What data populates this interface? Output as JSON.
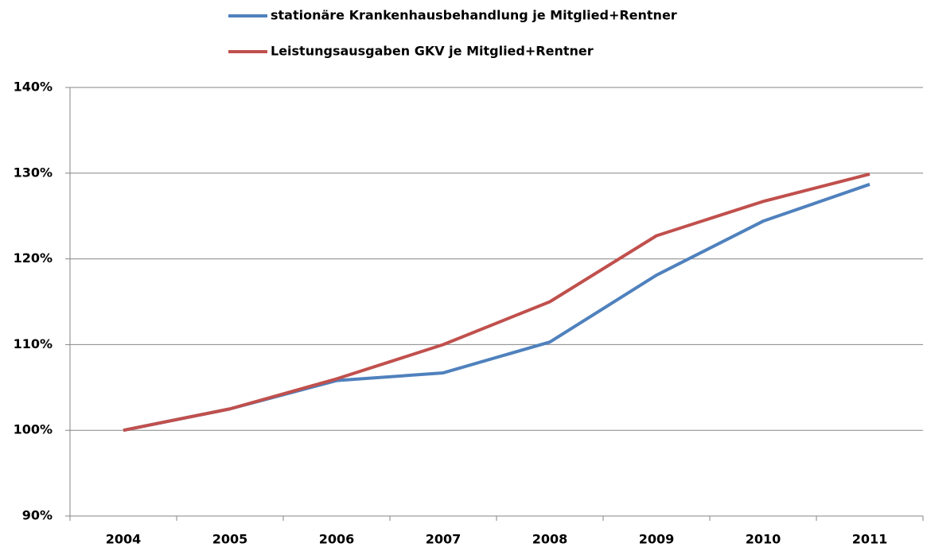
{
  "chart_data": {
    "type": "line",
    "categories": [
      "2004",
      "2005",
      "2006",
      "2007",
      "2008",
      "2009",
      "2010",
      "2011"
    ],
    "series": [
      {
        "name": "stationäre Krankenhausbehandlung je Mitglied+Rentner",
        "color": "#4f81bd",
        "values": [
          100,
          102.5,
          105.8,
          106.7,
          110.3,
          118.1,
          124.4,
          128.7
        ]
      },
      {
        "name": "Leistungsausgaben GKV je Mitglied+Rentner",
        "color": "#c0504d",
        "values": [
          100,
          102.5,
          106.0,
          110.0,
          115.0,
          122.7,
          126.7,
          129.9
        ]
      }
    ],
    "ylim": [
      90,
      140
    ],
    "yticks": [
      {
        "value": 90,
        "label": "90%"
      },
      {
        "value": 100,
        "label": "100%"
      },
      {
        "value": 110,
        "label": "110%"
      },
      {
        "value": 120,
        "label": "120%"
      },
      {
        "value": 130,
        "label": "130%"
      },
      {
        "value": 140,
        "label": "140%"
      }
    ],
    "grid": true
  }
}
